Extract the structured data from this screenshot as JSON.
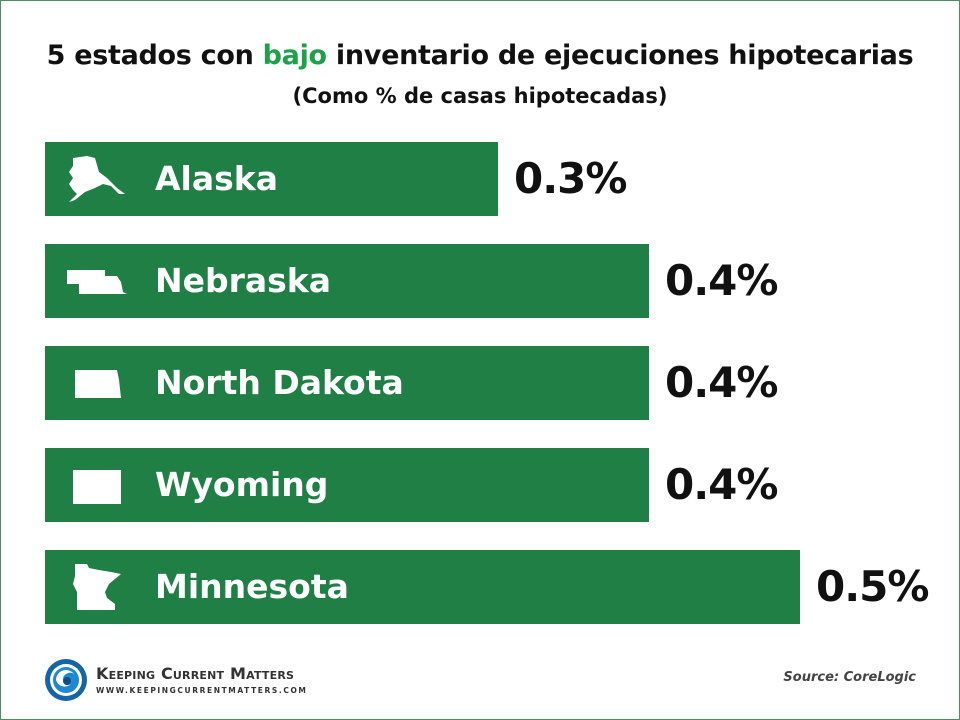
{
  "chart_data": {
    "type": "bar",
    "orientation": "horizontal",
    "title_parts": [
      "5 estados con ",
      "bajo",
      " inventario de ejecuciones hipotecarias"
    ],
    "subtitle": "(Como % de casas hipotecadas)",
    "categories": [
      "Alaska",
      "Nebraska",
      "North Dakota",
      "Wyoming",
      "Minnesota"
    ],
    "values": [
      0.3,
      0.4,
      0.4,
      0.4,
      0.5
    ],
    "value_labels": [
      "0.3%",
      "0.4%",
      "0.4%",
      "0.4%",
      "0.5%"
    ],
    "icons": [
      "alaska-icon",
      "nebraska-icon",
      "north-dakota-icon",
      "wyoming-icon",
      "minnesota-icon"
    ],
    "bar_color": "#1f7f45",
    "highlight_color": "#1fa04a",
    "xlim": [
      0,
      0.5
    ],
    "grid": false
  },
  "branding": {
    "logo_name": "Keeping Current Matters",
    "logo_url": "WWW.KEEPINGCURRENTMATTERS.COM",
    "source": "Source: CoreLogic"
  }
}
